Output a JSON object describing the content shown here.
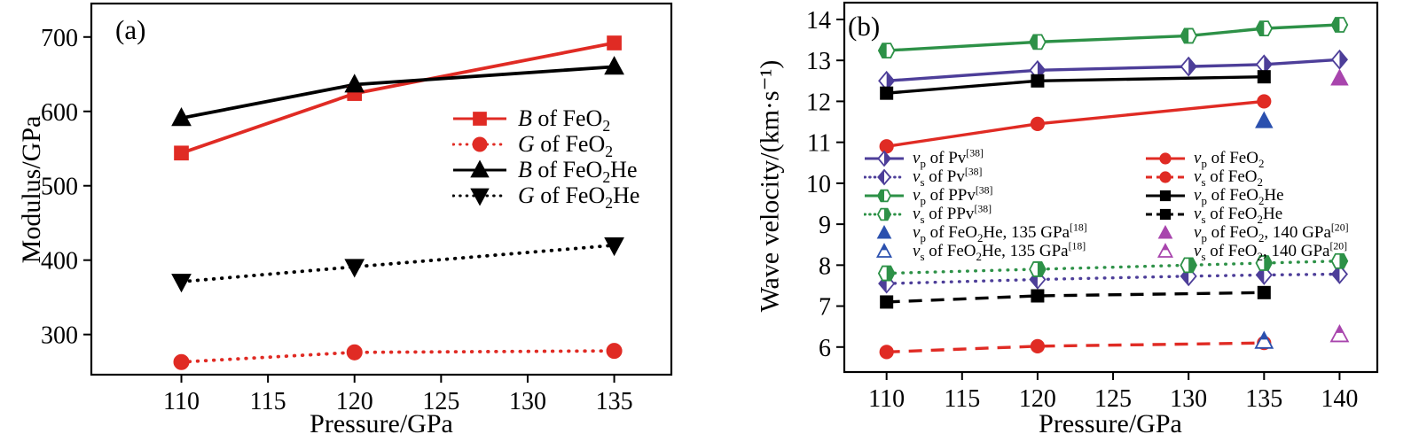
{
  "page": {
    "background": "#ffffff"
  },
  "chart_data": [
    {
      "id": "a",
      "type": "line",
      "panel_label": "(a)",
      "xlabel": "Pressure/GPa",
      "ylabel": "Modulus/GPa",
      "xlim": [
        104.8,
        138.3
      ],
      "ylim": [
        246,
        745
      ],
      "x_ticks": [
        110,
        115,
        120,
        125,
        130,
        135
      ],
      "y_ticks": [
        300,
        400,
        500,
        600,
        700
      ],
      "grid": false,
      "legend_position": "inside right middle, one column",
      "series": [
        {
          "label_html": "<i>B</i> of FeO<sub>2</sub>",
          "color": "#e02b24",
          "marker": "square",
          "marker_fill": "solid",
          "line": "solid",
          "legend_column": 1,
          "legend_row": 1,
          "x": [
            110,
            120,
            135
          ],
          "y": [
            544,
            624,
            692
          ]
        },
        {
          "label_html": "<i>G</i> of FeO<sub>2</sub>",
          "color": "#e02b24",
          "marker": "circle",
          "marker_fill": "solid",
          "line": "dotted",
          "legend_column": 1,
          "legend_row": 2,
          "x": [
            110,
            120,
            135
          ],
          "y": [
            263,
            276,
            278
          ]
        },
        {
          "label_html": "<i>B</i> of FeO<sub>2</sub>He",
          "color": "#000000",
          "marker": "triangle-up",
          "marker_fill": "solid",
          "line": "solid",
          "legend_column": 1,
          "legend_row": 3,
          "x": [
            110,
            120,
            135
          ],
          "y": [
            591,
            636,
            660
          ]
        },
        {
          "label_html": "<i>G</i> of FeO<sub>2</sub>He",
          "color": "#000000",
          "marker": "triangle-down",
          "marker_fill": "solid",
          "line": "dotted",
          "legend_column": 1,
          "legend_row": 4,
          "x": [
            110,
            120,
            135
          ],
          "y": [
            371,
            391,
            420
          ]
        }
      ]
    },
    {
      "id": "b",
      "type": "line",
      "panel_label": "(b)",
      "xlabel": "Pressure/GPa",
      "ylabel": "Wave velocity/(km·s⁻¹)",
      "xlim": [
        107.2,
        142.5
      ],
      "ylim": [
        5.39,
        14.41
      ],
      "x_ticks": [
        110,
        115,
        120,
        125,
        130,
        135,
        140
      ],
      "y_ticks": [
        6,
        7,
        8,
        9,
        10,
        11,
        12,
        13,
        14
      ],
      "grid": false,
      "legend_position": "inside middle, two columns",
      "series": [
        {
          "label_html": "<i>v</i><sub>p</sub> of Pv<sup>[38]</sup>",
          "color": "#4d3e99",
          "marker": "diamond",
          "marker_fill": "half-right",
          "line": "solid",
          "legend_column": 1,
          "legend_row": 1,
          "x": [
            110,
            120,
            130,
            135,
            140
          ],
          "y": [
            12.5,
            12.76,
            12.85,
            12.9,
            13.02
          ]
        },
        {
          "label_html": "<i>v</i><sub>s</sub> of Pv<sup>[38]</sup>",
          "color": "#4d3e99",
          "marker": "diamond",
          "marker_fill": "half-left",
          "line": "dotted",
          "legend_column": 1,
          "legend_row": 2,
          "x": [
            110,
            120,
            130,
            135,
            140
          ],
          "y": [
            7.55,
            7.65,
            7.73,
            7.76,
            7.78
          ]
        },
        {
          "label_html": "<i>v</i><sub>p</sub> of PPv<sup>[38]</sup>",
          "color": "#2d9147",
          "marker": "hexagon",
          "marker_fill": "half-left",
          "line": "solid",
          "legend_column": 1,
          "legend_row": 3,
          "x": [
            110,
            120,
            130,
            135,
            140
          ],
          "y": [
            13.24,
            13.45,
            13.6,
            13.78,
            13.87
          ]
        },
        {
          "label_html": "<i>v</i><sub>s</sub> of PPv<sup>[38]</sup>",
          "color": "#2d9147",
          "marker": "hexagon",
          "marker_fill": "half-right",
          "line": "dotted",
          "legend_column": 1,
          "legend_row": 4,
          "x": [
            110,
            120,
            130,
            135,
            140
          ],
          "y": [
            7.8,
            7.9,
            8.0,
            8.05,
            8.1
          ]
        },
        {
          "label_html": "<i>v</i><sub>p</sub> of FeO<sub>2</sub>",
          "color": "#e02b24",
          "marker": "circle",
          "marker_fill": "solid",
          "line": "solid",
          "legend_column": 2,
          "legend_row": 1,
          "x": [
            110,
            120,
            135
          ],
          "y": [
            10.9,
            11.45,
            12.0
          ]
        },
        {
          "label_html": "<i>v</i><sub>s</sub> of FeO<sub>2</sub>",
          "color": "#e02b24",
          "marker": "circle",
          "marker_fill": "solid",
          "line": "dashed",
          "legend_column": 2,
          "legend_row": 2,
          "x": [
            110,
            120,
            135
          ],
          "y": [
            5.88,
            6.02,
            6.1
          ]
        },
        {
          "label_html": "<i>v</i><sub>p</sub> of FeO<sub>2</sub>He",
          "color": "#000000",
          "marker": "square",
          "marker_fill": "solid",
          "line": "solid",
          "legend_column": 2,
          "legend_row": 3,
          "x": [
            110,
            120,
            135
          ],
          "y": [
            12.2,
            12.5,
            12.6
          ]
        },
        {
          "label_html": "<i>v</i><sub>s</sub> of FeO<sub>2</sub>He",
          "color": "#000000",
          "marker": "square",
          "marker_fill": "solid",
          "line": "dashed",
          "legend_column": 2,
          "legend_row": 4,
          "x": [
            110,
            120,
            135
          ],
          "y": [
            7.1,
            7.25,
            7.33
          ]
        },
        {
          "label_html": "<i>v</i><sub>p</sub> of FeO<sub>2</sub>He, 135 GPa<sup>[18]</sup>",
          "color": "#2b50ae",
          "marker": "triangle-up",
          "marker_fill": "solid",
          "line": "none",
          "legend_column": 1,
          "legend_row": 5,
          "x": [
            135
          ],
          "y": [
            11.52
          ]
        },
        {
          "label_html": "<i>v</i><sub>s</sub> of FeO<sub>2</sub>He, 135 GPa<sup>[18]</sup>",
          "color": "#2b50ae",
          "marker": "triangle-up",
          "marker_fill": "half-top",
          "line": "none",
          "legend_column": 1,
          "legend_row": 6,
          "x": [
            135
          ],
          "y": [
            6.14
          ]
        },
        {
          "label_html": "<i>v</i><sub>p</sub> of FeO<sub>2</sub>, 140 GPa<sup>[20]</sup>",
          "color": "#a845ad",
          "marker": "triangle-up",
          "marker_fill": "solid",
          "line": "none",
          "legend_column": 2,
          "legend_row": 5,
          "x": [
            140
          ],
          "y": [
            12.56
          ]
        },
        {
          "label_html": "<i>v</i><sub>s</sub> of FeO<sub>2</sub>, 140 GPa<sup>[20]</sup>",
          "color": "#a845ad",
          "marker": "triangle-up",
          "marker_fill": "half-top",
          "line": "none",
          "legend_column": 2,
          "legend_row": 6,
          "x": [
            140
          ],
          "y": [
            6.3
          ]
        }
      ]
    }
  ]
}
